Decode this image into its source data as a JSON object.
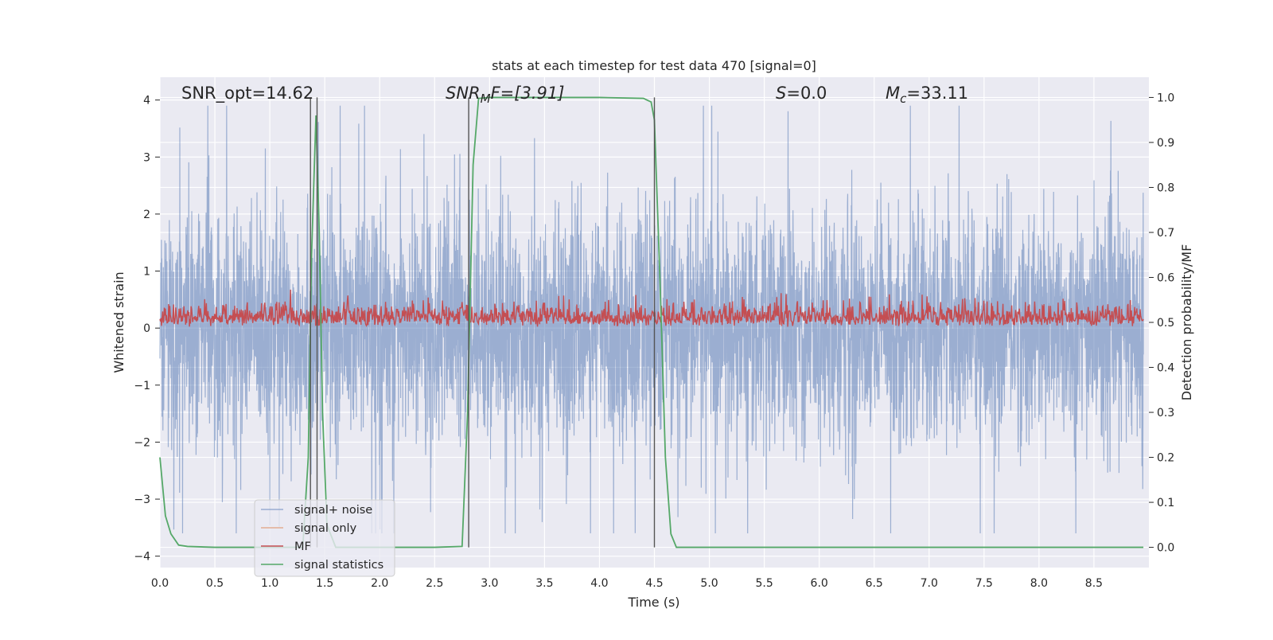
{
  "chart_data": {
    "type": "line",
    "title": "stats at each timestep for test data 470 [signal=0]",
    "xlabel": "Time (s)",
    "ylabel": "Whitened strain",
    "y2label": "Detection probability/MF",
    "xlim": [
      0.0,
      9.0
    ],
    "ylim": [
      -4.2,
      4.4
    ],
    "y2lim": [
      -0.045,
      1.045
    ],
    "grid": true,
    "x_ticks": [
      "0.0",
      "0.5",
      "1.0",
      "1.5",
      "2.0",
      "2.5",
      "3.0",
      "3.5",
      "4.0",
      "4.5",
      "5.0",
      "5.5",
      "6.0",
      "6.5",
      "7.0",
      "7.5",
      "8.0",
      "8.5"
    ],
    "y_ticks": [
      "4",
      "3",
      "2",
      "1",
      "0",
      "−1",
      "−2",
      "−3",
      "−4"
    ],
    "y2_ticks": [
      "1.0",
      "0.9",
      "0.8",
      "0.7",
      "0.6",
      "0.5",
      "0.4",
      "0.3",
      "0.2",
      "0.1",
      "0.0"
    ],
    "annotations": [
      {
        "id": "snr-opt",
        "text": "SNR_opt=14.62"
      },
      {
        "id": "snr-mf-sym",
        "text": "SNR"
      },
      {
        "id": "snr-mf-sub",
        "text": "M"
      },
      {
        "id": "snr-mf-rest",
        "text": "F=[3.91]"
      },
      {
        "id": "s-sym",
        "text": "S"
      },
      {
        "id": "s-val",
        "text": "=0.0"
      },
      {
        "id": "mc-sym",
        "text": "M"
      },
      {
        "id": "mc-sub",
        "text": "c"
      },
      {
        "id": "mc-val",
        "text": "=33.11"
      }
    ],
    "legend_position": "lower-left",
    "series": [
      {
        "name": "signal+ noise",
        "color": "#4c72b0",
        "axis": "left",
        "amplitude_range": [
          -3.6,
          3.9
        ]
      },
      {
        "name": "signal only",
        "color": "#dd8452",
        "axis": "left",
        "values": [
          0
        ]
      },
      {
        "name": "MF",
        "color": "#c44e52",
        "axis": "right",
        "amplitude_range": [
          0.49,
          0.58
        ]
      },
      {
        "name": "signal statistics",
        "color": "#55a868",
        "axis": "right",
        "x": [
          0.0,
          0.05,
          0.1,
          0.17,
          0.25,
          0.5,
          1.0,
          1.3,
          1.35,
          1.38,
          1.42,
          1.45,
          1.48,
          1.52,
          1.6,
          1.8,
          2.0,
          2.5,
          2.75,
          2.8,
          2.85,
          2.9,
          3.0,
          3.5,
          4.0,
          4.4,
          4.47,
          4.5,
          4.55,
          4.6,
          4.65,
          4.7,
          5.0,
          6.0,
          7.0,
          8.0,
          8.95
        ],
        "values": [
          0.2,
          0.07,
          0.03,
          0.005,
          0.002,
          0.0,
          0.0,
          0.0,
          0.2,
          0.65,
          0.96,
          0.7,
          0.3,
          0.05,
          0.0,
          0.0,
          0.0,
          0.0,
          0.002,
          0.3,
          0.85,
          0.998,
          1.0,
          1.0,
          1.0,
          0.998,
          0.99,
          0.95,
          0.6,
          0.2,
          0.03,
          0.0,
          0.0,
          0.0,
          0.0,
          0.0,
          0.0
        ]
      }
    ],
    "vertical_lines": [
      1.37,
      1.43,
      2.81,
      4.5
    ]
  }
}
